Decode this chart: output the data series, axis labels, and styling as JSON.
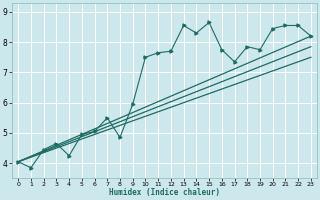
{
  "xlabel": "Humidex (Indice chaleur)",
  "xlim": [
    -0.5,
    23.5
  ],
  "ylim": [
    3.5,
    9.3
  ],
  "xticks": [
    0,
    1,
    2,
    3,
    4,
    5,
    6,
    7,
    8,
    9,
    10,
    11,
    12,
    13,
    14,
    15,
    16,
    17,
    18,
    19,
    20,
    21,
    22,
    23
  ],
  "yticks": [
    4,
    5,
    6,
    7,
    8,
    9
  ],
  "bg_color": "#cde8ec",
  "line_color": "#1e6b64",
  "grid_color": "#ffffff",
  "curve1_x": [
    0,
    1,
    2,
    3,
    4,
    5,
    6,
    7,
    8,
    9,
    10,
    11,
    12,
    13,
    14,
    15,
    16,
    17,
    18,
    19,
    20,
    21,
    22,
    23
  ],
  "curve1_y": [
    4.05,
    3.85,
    4.45,
    4.65,
    4.25,
    4.95,
    5.05,
    5.5,
    4.85,
    5.95,
    7.5,
    7.65,
    7.7,
    8.55,
    8.3,
    8.65,
    7.75,
    7.35,
    7.85,
    7.75,
    8.45,
    8.55,
    8.55,
    8.2
  ],
  "line1_x": [
    0,
    23
  ],
  "line1_y": [
    4.05,
    8.2
  ],
  "line2_x": [
    0,
    23
  ],
  "line2_y": [
    4.05,
    7.85
  ],
  "line3_x": [
    0,
    23
  ],
  "line3_y": [
    4.05,
    7.5
  ]
}
